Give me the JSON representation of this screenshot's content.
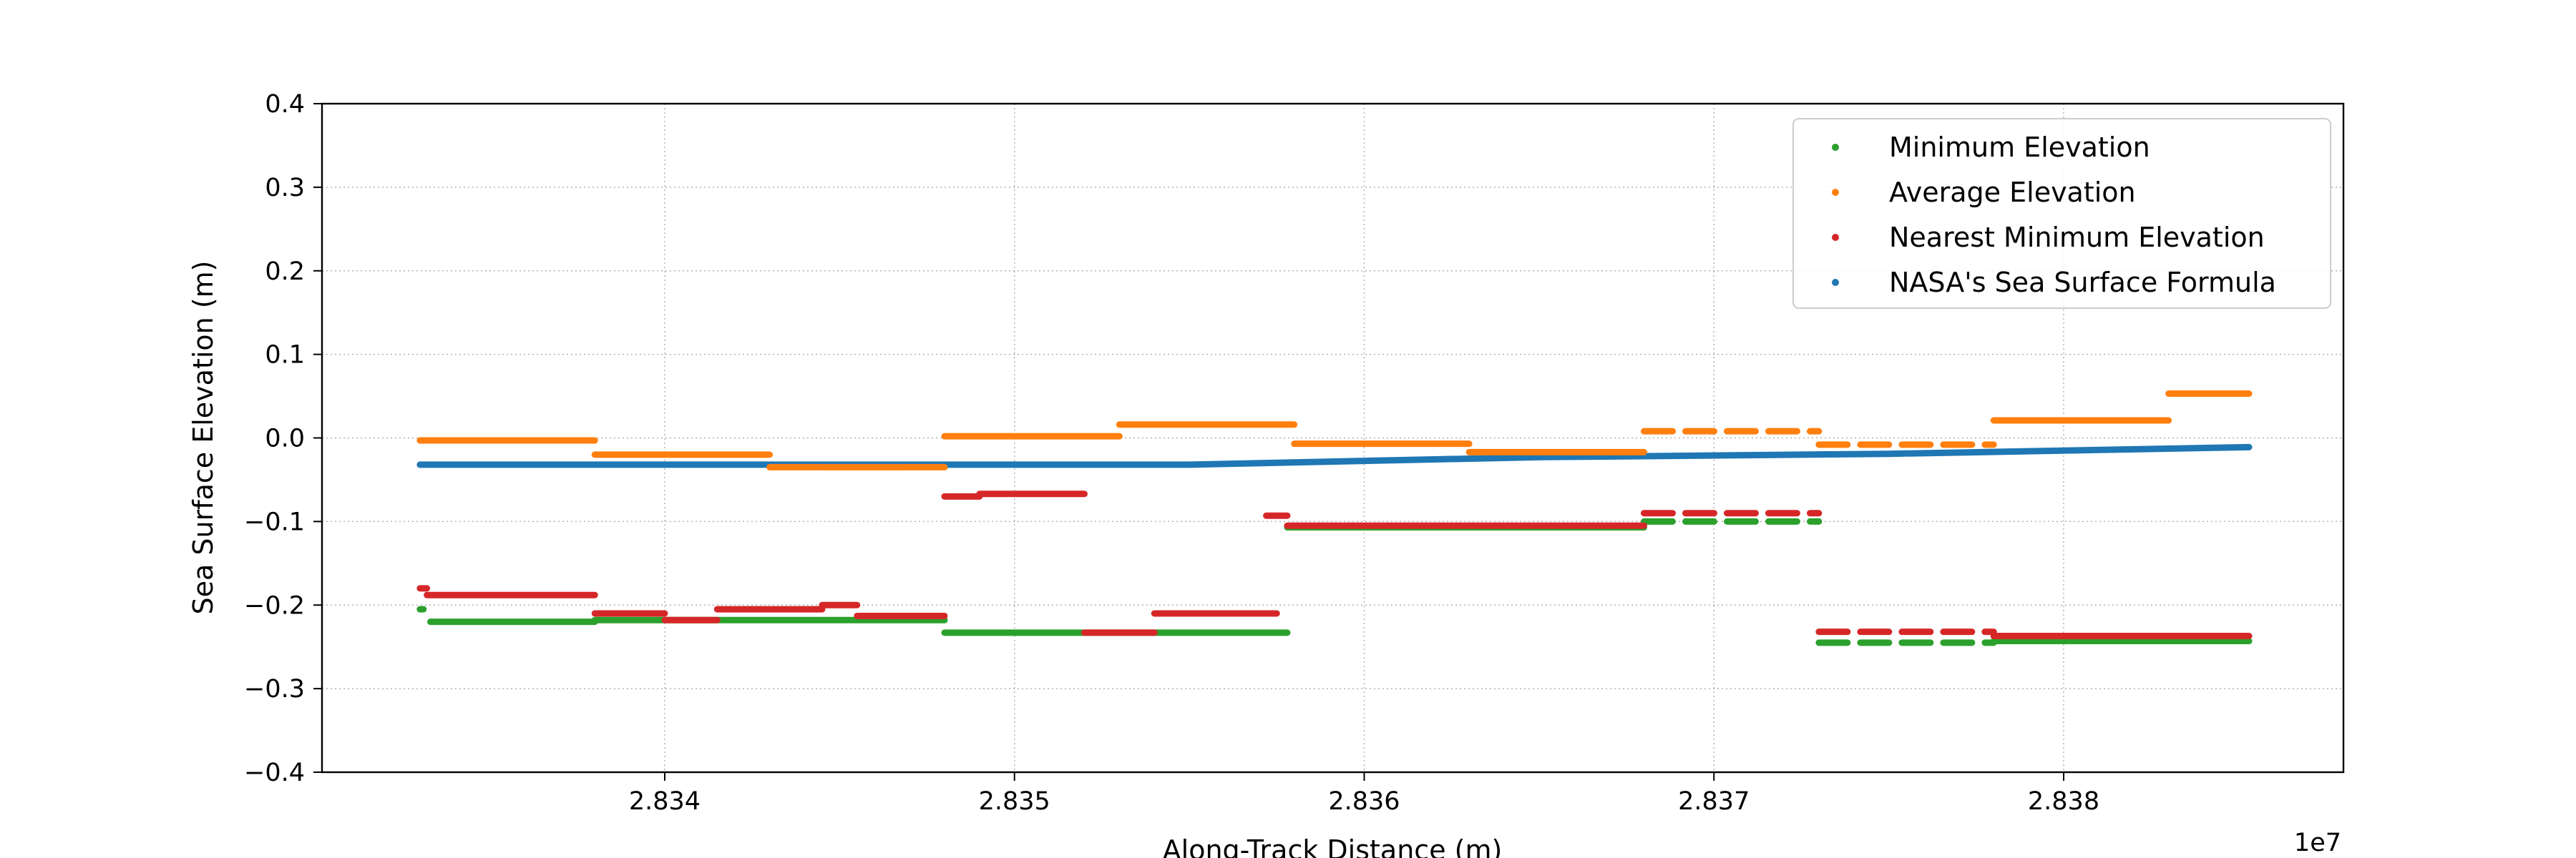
{
  "chart_data": {
    "type": "scatter",
    "title": "",
    "xlabel": "Along-Track Distance (m)",
    "ylabel": "Sea Surface Elevation (m)",
    "x_offset_label": "1e7",
    "xlim": [
      28330200,
      28388000
    ],
    "ylim": [
      -0.4,
      0.4
    ],
    "x_ticks": [
      28340000,
      28350000,
      28360000,
      28370000,
      28380000
    ],
    "x_tick_labels": [
      "2.834",
      "2.835",
      "2.836",
      "2.837",
      "2.838"
    ],
    "y_ticks": [
      -0.4,
      -0.3,
      -0.2,
      -0.1,
      0.0,
      0.1,
      0.2,
      0.3,
      0.4
    ],
    "y_tick_labels": [
      "−0.4",
      "−0.3",
      "−0.2",
      "−0.1",
      "0.0",
      "0.1",
      "0.2",
      "0.3",
      "0.4"
    ],
    "grid": true,
    "legend_position": "top-right",
    "series": [
      {
        "name": "Minimum Elevation",
        "color": "#2ca02c",
        "segments": [
          {
            "x0": 28333000,
            "x1": 28333100,
            "y": -0.205
          },
          {
            "x0": 28333300,
            "x1": 28338000,
            "y": -0.22
          },
          {
            "x0": 28338000,
            "x1": 28348000,
            "y": -0.218
          },
          {
            "x0": 28348000,
            "x1": 28357800,
            "y": -0.233
          },
          {
            "x0": 28357800,
            "x1": 28368000,
            "y": -0.107
          },
          {
            "x0": 28368000,
            "x1": 28373000,
            "y": -0.1,
            "dashed": true
          },
          {
            "x0": 28373000,
            "x1": 28378000,
            "y": -0.245,
            "dashed": true
          },
          {
            "x0": 28378000,
            "x1": 28385300,
            "y": -0.243
          }
        ]
      },
      {
        "name": "Average Elevation",
        "color": "#ff7f0e",
        "segments": [
          {
            "x0": 28333000,
            "x1": 28338000,
            "y": -0.003
          },
          {
            "x0": 28338000,
            "x1": 28343000,
            "y": -0.02
          },
          {
            "x0": 28343000,
            "x1": 28348000,
            "y": -0.035
          },
          {
            "x0": 28348000,
            "x1": 28353000,
            "y": 0.002
          },
          {
            "x0": 28353000,
            "x1": 28358000,
            "y": 0.016
          },
          {
            "x0": 28358000,
            "x1": 28363000,
            "y": -0.007
          },
          {
            "x0": 28363000,
            "x1": 28368000,
            "y": -0.017
          },
          {
            "x0": 28368000,
            "x1": 28373000,
            "y": 0.008,
            "dashed": true
          },
          {
            "x0": 28373000,
            "x1": 28378000,
            "y": -0.008,
            "dashed": true
          },
          {
            "x0": 28378000,
            "x1": 28383000,
            "y": 0.021
          },
          {
            "x0": 28383000,
            "x1": 28385300,
            "y": 0.053
          }
        ]
      },
      {
        "name": "Nearest Minimum Elevation",
        "color": "#d62728",
        "segments": [
          {
            "x0": 28333000,
            "x1": 28333200,
            "y": -0.18
          },
          {
            "x0": 28333200,
            "x1": 28338000,
            "y": -0.188
          },
          {
            "x0": 28338000,
            "x1": 28340000,
            "y": -0.21
          },
          {
            "x0": 28340000,
            "x1": 28341500,
            "y": -0.218
          },
          {
            "x0": 28341500,
            "x1": 28344500,
            "y": -0.205
          },
          {
            "x0": 28344500,
            "x1": 28345500,
            "y": -0.2
          },
          {
            "x0": 28345500,
            "x1": 28348000,
            "y": -0.213
          },
          {
            "x0": 28348000,
            "x1": 28349000,
            "y": -0.07
          },
          {
            "x0": 28349000,
            "x1": 28352000,
            "y": -0.067
          },
          {
            "x0": 28352000,
            "x1": 28354000,
            "y": -0.233
          },
          {
            "x0": 28354000,
            "x1": 28357500,
            "y": -0.21
          },
          {
            "x0": 28357200,
            "x1": 28357800,
            "y": -0.093
          },
          {
            "x0": 28357800,
            "x1": 28368000,
            "y": -0.105
          },
          {
            "x0": 28368000,
            "x1": 28373000,
            "y": -0.09,
            "dashed": true
          },
          {
            "x0": 28373000,
            "x1": 28378000,
            "y": -0.232,
            "dashed": true
          },
          {
            "x0": 28378000,
            "x1": 28385300,
            "y": -0.237
          }
        ]
      },
      {
        "name": "NASA's Sea Surface Formula",
        "color": "#1f77b4",
        "trend": [
          {
            "x": 28333000,
            "y": -0.032
          },
          {
            "x": 28355000,
            "y": -0.032
          },
          {
            "x": 28365000,
            "y": -0.023
          },
          {
            "x": 28375000,
            "y": -0.019
          },
          {
            "x": 28385300,
            "y": -0.011
          }
        ]
      }
    ]
  }
}
